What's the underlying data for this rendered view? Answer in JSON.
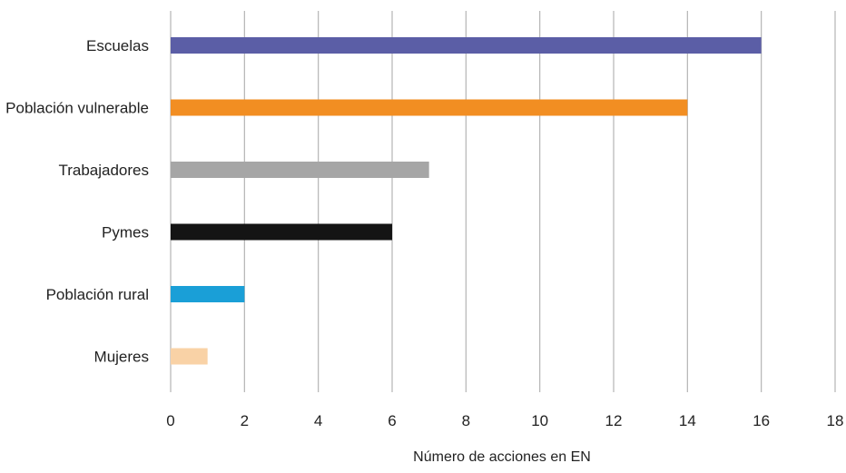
{
  "chart_data": {
    "type": "bar",
    "orientation": "horizontal",
    "categories": [
      "Escuelas",
      "Población vulnerable",
      "Trabajadores",
      "Pymes",
      "Población rural",
      "Mujeres"
    ],
    "values": [
      16,
      14,
      7,
      6,
      2,
      1
    ],
    "colors": [
      "#5b5ea6",
      "#f28e22",
      "#a6a6a6",
      "#141414",
      "#1a9fd7",
      "#f9d2a6"
    ],
    "xlabel": "Número de acciones en EN",
    "ylabel": "",
    "title": "",
    "xlim": [
      0,
      18
    ],
    "xticks": [
      0,
      2,
      4,
      6,
      8,
      10,
      12,
      14,
      16,
      18
    ],
    "xtick_labels": [
      "0",
      "2",
      "4",
      "6",
      "8",
      "10",
      "12",
      "14",
      "16",
      "18"
    ],
    "grid": "vertical",
    "legend": "none"
  }
}
